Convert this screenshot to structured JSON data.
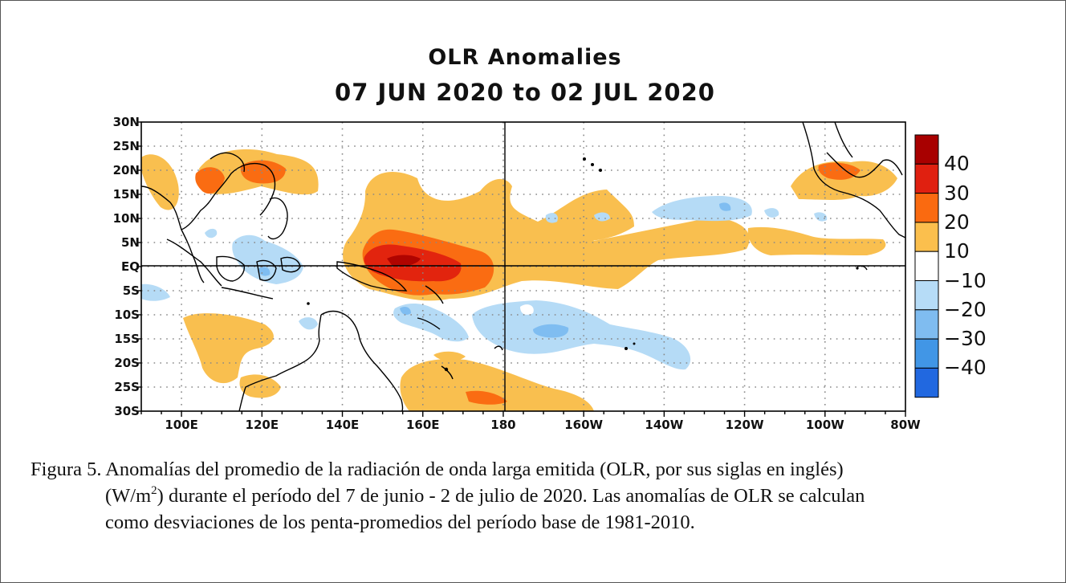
{
  "map": {
    "title": "OLR Anomalies",
    "subtitle": "07 JUN 2020 to 02 JUL 2020",
    "lat_labels": [
      "30N",
      "25N",
      "20N",
      "15N",
      "10N",
      "5N",
      "EQ",
      "5S",
      "10S",
      "15S",
      "20S",
      "25S",
      "30S"
    ],
    "lon_labels": [
      "100E",
      "120E",
      "140E",
      "160E",
      "180",
      "160W",
      "140W",
      "120W",
      "100W",
      "80W"
    ],
    "colorbar": {
      "labels": [
        "40",
        "30",
        "20",
        "10",
        "−10",
        "−20",
        "−30",
        "−40"
      ],
      "colors": [
        "#a80000",
        "#e02010",
        "#fa6a10",
        "#fbbf4d",
        "#ffffff",
        "#b6dcf7",
        "#7fbcf0",
        "#4196e6",
        "#2168e0"
      ]
    },
    "colors": {
      "pos10": "#f9bf4f",
      "pos20": "#fa6c12",
      "pos30": "#e2240e",
      "pos40": "#b00400",
      "neg10": "#b5dbf6",
      "neg20": "#7fbdf1"
    }
  },
  "caption": {
    "line1": "Figura 5. Anomalías del promedio de la radiación de onda larga emitida (OLR, por sus siglas en inglés)",
    "line2_pre": "(W/m",
    "line2_sup": "2",
    "line2_post": ") durante el período del 7 de junio - 2 de julio de 2020.  Las anomalías de OLR se calculan",
    "line3": "como desviaciones de los penta-promedios del período base de 1981-2010."
  }
}
